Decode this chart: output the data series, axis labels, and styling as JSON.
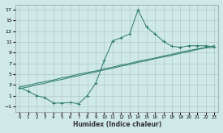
{
  "xlabel": "Humidex (Indice chaleur)",
  "background_color": "#cfe8e8",
  "grid_color": "#b0c8c8",
  "line_color": "#2a7a6a",
  "x_values": [
    0,
    1,
    2,
    3,
    4,
    5,
    6,
    7,
    8,
    9,
    10,
    11,
    12,
    13,
    14,
    15,
    16,
    17,
    18,
    19,
    20,
    21,
    22,
    23
  ],
  "line1_y": [
    2.5,
    1.8,
    1.0,
    0.6,
    -0.4,
    -0.4,
    -0.3,
    -0.5,
    1.0,
    3.3,
    7.5,
    11.2,
    11.8,
    12.5,
    17.0,
    13.8,
    12.5,
    11.1,
    10.2,
    10.0,
    10.3,
    10.3,
    10.3,
    10.1
  ],
  "line2_y": [
    2.3,
    2.6,
    3.0,
    3.3,
    3.7,
    4.0,
    4.4,
    4.7,
    5.1,
    5.4,
    5.8,
    6.1,
    6.5,
    6.8,
    7.2,
    7.5,
    7.9,
    8.2,
    8.5,
    8.9,
    9.2,
    9.6,
    9.9,
    10.0
  ],
  "line3_y": [
    2.6,
    2.9,
    3.3,
    3.6,
    3.9,
    4.3,
    4.6,
    5.0,
    5.3,
    5.6,
    6.0,
    6.3,
    6.7,
    7.0,
    7.4,
    7.7,
    8.0,
    8.4,
    8.7,
    9.1,
    9.4,
    9.7,
    10.0,
    10.3
  ],
  "ylim": [
    -2,
    18
  ],
  "xlim": [
    -0.5,
    23.5
  ],
  "yticks": [
    -1,
    1,
    3,
    5,
    7,
    9,
    11,
    13,
    15,
    17
  ],
  "xticks": [
    0,
    1,
    2,
    3,
    4,
    5,
    6,
    7,
    8,
    9,
    10,
    11,
    12,
    13,
    14,
    15,
    16,
    17,
    18,
    19,
    20,
    21,
    22,
    23
  ]
}
